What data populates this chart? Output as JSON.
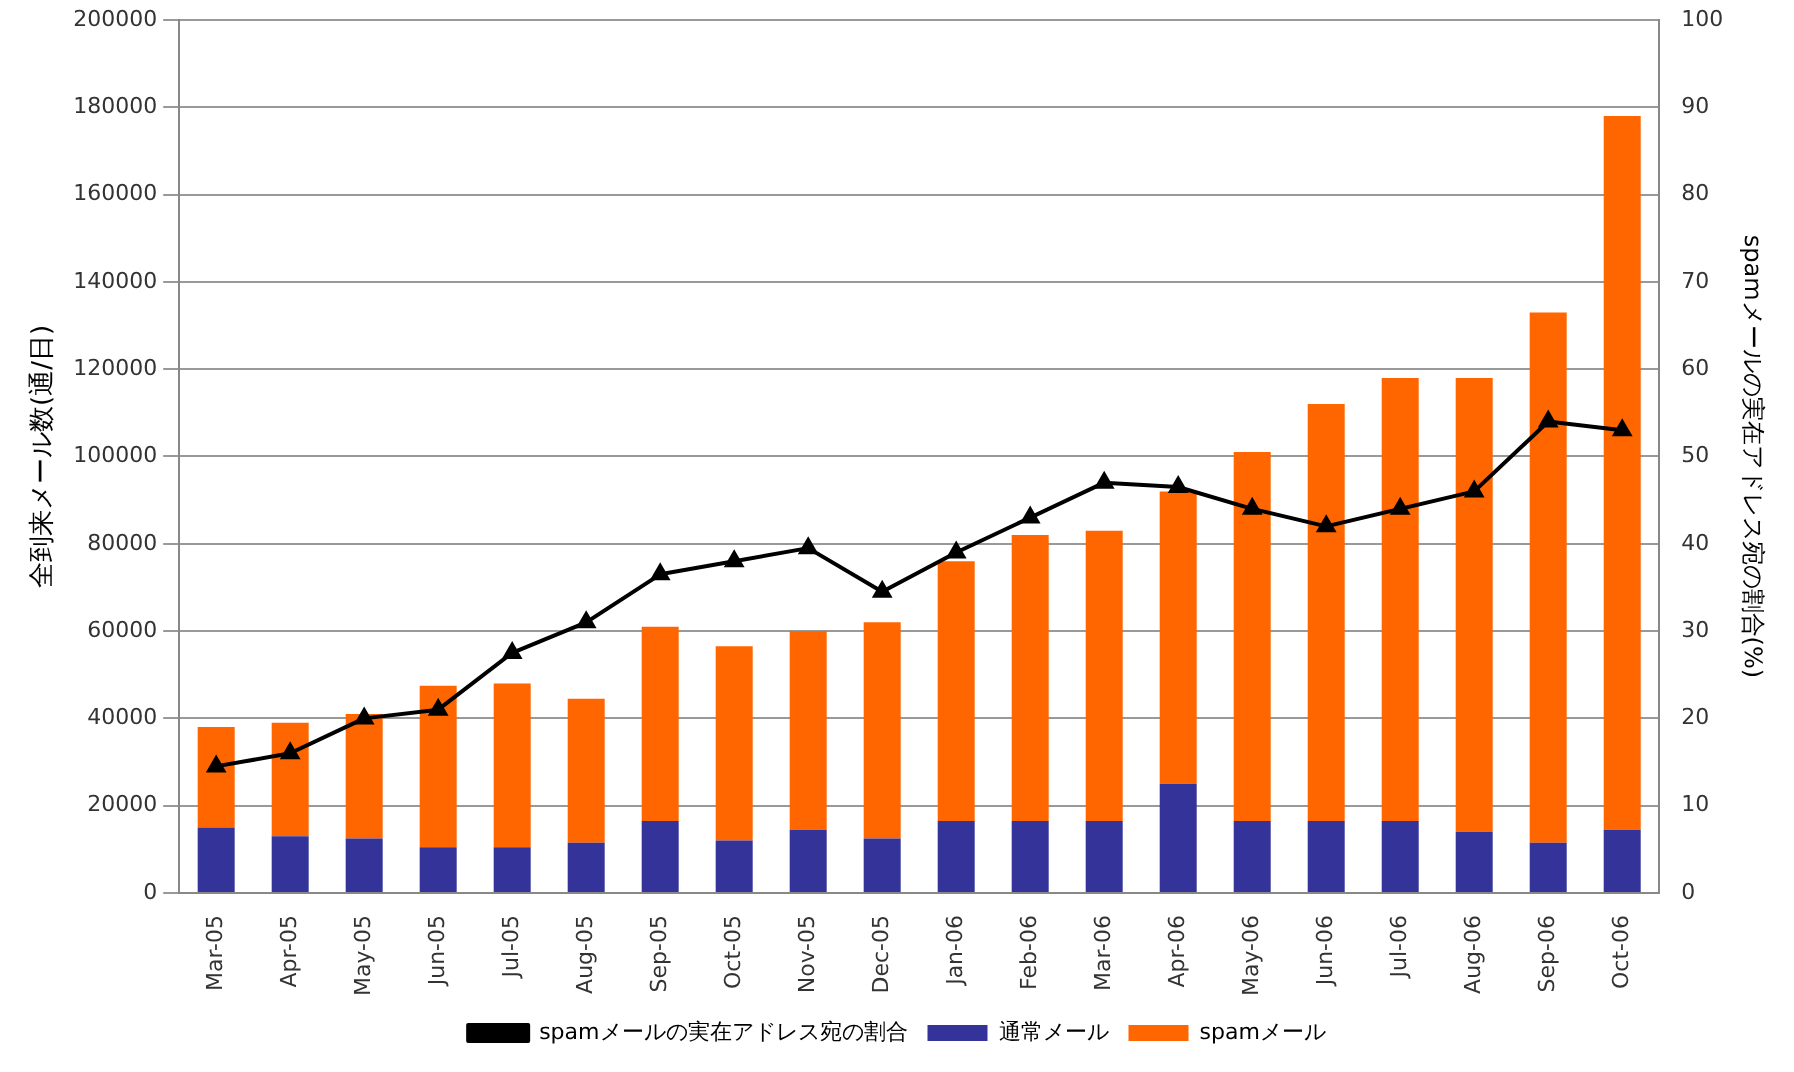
{
  "chart_data": {
    "type": "bar",
    "stacked": true,
    "ylabel": "全到来メール数(通/日)",
    "y2label": "spamメールの実在アドレス宛の割合(%)",
    "categories": [
      "Mar-05",
      "Apr-05",
      "May-05",
      "Jun-05",
      "Jul-05",
      "Aug-05",
      "Sep-05",
      "Oct-05",
      "Nov-05",
      "Dec-05",
      "Jan-06",
      "Feb-06",
      "Mar-06",
      "Apr-06",
      "May-06",
      "Jun-06",
      "Jul-06",
      "Aug-06",
      "Sep-06",
      "Oct-06"
    ],
    "series": [
      {
        "name": "通常メール",
        "color": "#333399",
        "values": [
          15000,
          13000,
          12500,
          10500,
          10500,
          11500,
          16500,
          12000,
          14500,
          12500,
          16500,
          16500,
          16500,
          25000,
          16500,
          16500,
          16500,
          14000,
          11500,
          14500
        ]
      },
      {
        "name": "spamメール",
        "color": "#ff6600",
        "values": [
          23000,
          26000,
          28500,
          37000,
          37500,
          33000,
          44500,
          44500,
          45500,
          49500,
          59500,
          65500,
          66500,
          67000,
          84500,
          95500,
          101500,
          104000,
          121500,
          163500
        ]
      },
      {
        "name": "spamメールの実在アドレス宛の割合",
        "type": "line",
        "axis": "y2",
        "color": "#000000",
        "marker": "triangle",
        "values": [
          14.5,
          16,
          20,
          21,
          27.5,
          31,
          36.5,
          38,
          39.5,
          34.5,
          39,
          43,
          47,
          46.5,
          44,
          42,
          44,
          46,
          54,
          53
        ]
      }
    ],
    "ylim": [
      0,
      200000
    ],
    "yticks": [
      0,
      20000,
      40000,
      60000,
      80000,
      100000,
      120000,
      140000,
      160000,
      180000,
      200000
    ],
    "y2lim": [
      0,
      100
    ],
    "y2ticks": [
      0,
      10,
      20,
      30,
      40,
      50,
      60,
      70,
      80,
      90,
      100
    ],
    "grid": "y",
    "legend": "bottom"
  }
}
